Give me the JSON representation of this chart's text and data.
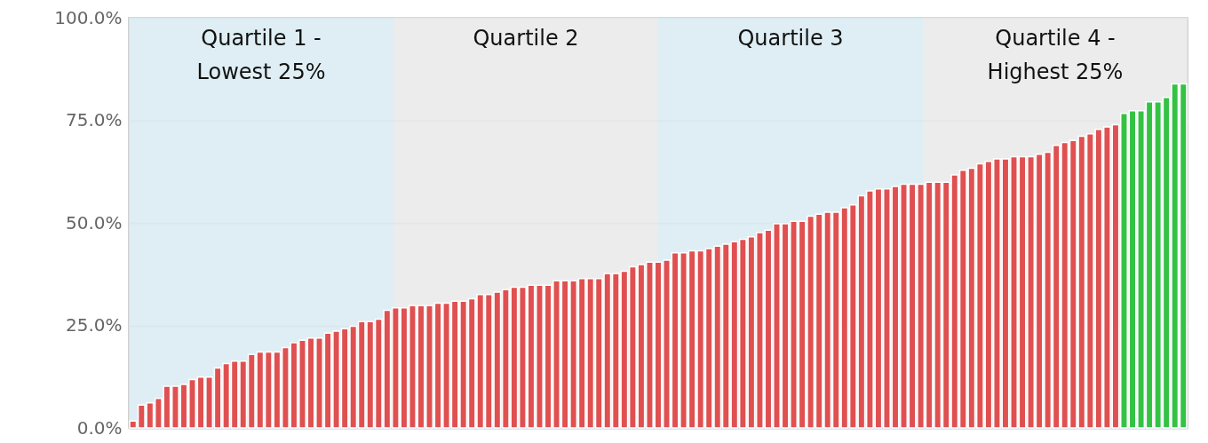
{
  "chart_data": {
    "type": "bar",
    "categories": [
      null,
      null,
      null,
      null,
      null,
      null,
      null,
      null,
      null,
      null,
      null,
      null,
      null,
      null,
      null,
      null,
      null,
      null,
      null,
      null,
      null,
      null,
      null,
      null,
      null,
      null,
      null,
      null,
      null,
      null,
      null,
      null,
      null,
      null,
      null,
      null,
      null,
      null,
      null,
      null,
      null,
      null,
      null,
      null,
      null,
      null,
      null,
      null,
      null,
      null,
      null,
      null,
      null,
      null,
      null,
      null,
      null,
      null,
      null,
      null,
      null,
      null,
      null,
      null,
      null,
      null,
      null,
      null,
      null,
      null,
      null,
      null,
      null,
      null,
      null,
      null,
      null,
      null,
      null,
      null,
      null,
      null,
      null,
      null,
      null,
      null,
      null,
      null,
      null,
      null,
      null,
      null,
      null,
      null,
      null,
      null,
      null,
      null,
      null,
      null,
      null,
      null,
      null,
      null,
      null,
      null,
      null,
      null,
      null,
      null,
      null,
      null,
      null,
      null,
      null,
      null,
      null,
      null,
      null,
      null,
      null,
      null,
      null,
      null,
      null
    ],
    "values": [
      1.7,
      5.6,
      6.1,
      7.2,
      10.2,
      10.2,
      10.6,
      11.8,
      12.4,
      12.4,
      14.6,
      15.7,
      16.3,
      16.3,
      17.9,
      18.5,
      18.5,
      18.5,
      19.6,
      20.8,
      21.4,
      21.9,
      21.9,
      23.1,
      23.6,
      24.2,
      24.8,
      25.9,
      25.9,
      26.5,
      28.7,
      29.3,
      29.3,
      29.8,
      29.8,
      29.8,
      30.4,
      30.4,
      30.9,
      30.9,
      31.5,
      32.5,
      32.5,
      33.1,
      33.7,
      34.3,
      34.3,
      34.8,
      34.8,
      34.8,
      35.9,
      35.9,
      35.9,
      36.4,
      36.4,
      36.4,
      37.6,
      37.6,
      38.2,
      39.3,
      39.8,
      40.4,
      40.4,
      40.9,
      42.7,
      42.7,
      43.2,
      43.2,
      43.7,
      44.3,
      44.8,
      45.4,
      46.0,
      46.6,
      47.6,
      48.2,
      49.8,
      49.8,
      50.4,
      50.4,
      51.6,
      52.1,
      52.6,
      52.6,
      53.7,
      54.4,
      56.6,
      57.8,
      58.3,
      58.3,
      58.9,
      59.4,
      59.4,
      59.4,
      59.9,
      59.9,
      59.9,
      61.7,
      62.8,
      63.3,
      64.4,
      65.0,
      65.6,
      65.6,
      66.1,
      66.1,
      66.1,
      66.7,
      67.2,
      68.9,
      69.6,
      70.1,
      71.1,
      71.7,
      72.8,
      73.4,
      73.9,
      76.7,
      77.3,
      77.3,
      79.5,
      79.5,
      80.6,
      83.9,
      83.9
    ],
    "colors": [
      "#e05050",
      "#e05050",
      "#e05050",
      "#e05050",
      "#e05050",
      "#e05050",
      "#e05050",
      "#e05050",
      "#e05050",
      "#e05050",
      "#e05050",
      "#e05050",
      "#e05050",
      "#e05050",
      "#e05050",
      "#e05050",
      "#e05050",
      "#e05050",
      "#e05050",
      "#e05050",
      "#e05050",
      "#e05050",
      "#e05050",
      "#e05050",
      "#e05050",
      "#e05050",
      "#e05050",
      "#e05050",
      "#e05050",
      "#e05050",
      "#e05050",
      "#e05050",
      "#e05050",
      "#e05050",
      "#e05050",
      "#e05050",
      "#e05050",
      "#e05050",
      "#e05050",
      "#e05050",
      "#e05050",
      "#e05050",
      "#e05050",
      "#e05050",
      "#e05050",
      "#e05050",
      "#e05050",
      "#e05050",
      "#e05050",
      "#e05050",
      "#e05050",
      "#e05050",
      "#e05050",
      "#e05050",
      "#e05050",
      "#e05050",
      "#e05050",
      "#e05050",
      "#e05050",
      "#e05050",
      "#e05050",
      "#e05050",
      "#e05050",
      "#e05050",
      "#e05050",
      "#e05050",
      "#e05050",
      "#e05050",
      "#e05050",
      "#e05050",
      "#e05050",
      "#e05050",
      "#e05050",
      "#e05050",
      "#e05050",
      "#e05050",
      "#e05050",
      "#e05050",
      "#e05050",
      "#e05050",
      "#e05050",
      "#e05050",
      "#e05050",
      "#e05050",
      "#e05050",
      "#e05050",
      "#e05050",
      "#e05050",
      "#e05050",
      "#e05050",
      "#e05050",
      "#e05050",
      "#e05050",
      "#e05050",
      "#e05050",
      "#e05050",
      "#e05050",
      "#e05050",
      "#e05050",
      "#e05050",
      "#e05050",
      "#e05050",
      "#e05050",
      "#e05050",
      "#e05050",
      "#e05050",
      "#e05050",
      "#e05050",
      "#e05050",
      "#e05050",
      "#e05050",
      "#e05050",
      "#e05050",
      "#e05050",
      "#e05050",
      "#e05050",
      "#e05050",
      "#33c244",
      "#33c244",
      "#33c244",
      "#33c244",
      "#33c244",
      "#33c244",
      "#33c244",
      "#33c244"
    ],
    "ylim": [
      0,
      100
    ],
    "yticks": [
      {
        "value": 0,
        "label": "0.0%"
      },
      {
        "value": 25,
        "label": "25.0%"
      },
      {
        "value": 50,
        "label": "50.0%"
      },
      {
        "value": 75,
        "label": "75.0%"
      },
      {
        "value": 100,
        "label": "100.0%"
      }
    ],
    "tick_labels": "y",
    "grid": "y",
    "annotations": [
      "Quartile 1 -\nLowest 25%",
      "Quartile 2",
      "Quartile 3",
      "Quartile 4 -\nHighest 25%"
    ]
  }
}
